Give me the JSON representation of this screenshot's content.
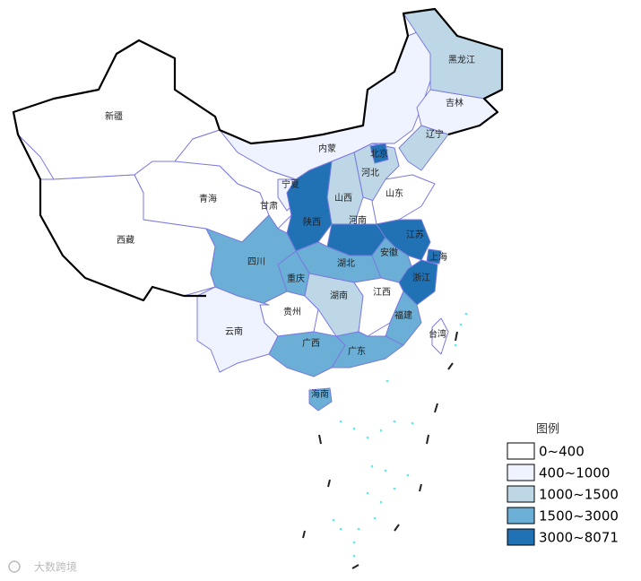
{
  "map": {
    "regions": [
      {
        "name": "新疆",
        "color": "#ffffff"
      },
      {
        "name": "西藏",
        "color": "#ffffff"
      },
      {
        "name": "青海",
        "color": "#ffffff"
      },
      {
        "name": "甘肃",
        "color": "#ffffff"
      },
      {
        "name": "内蒙",
        "color": "#eff3ff"
      },
      {
        "name": "黑龙江",
        "color": "#bdd7e7"
      },
      {
        "name": "吉林",
        "color": "#eff3ff"
      },
      {
        "name": "辽宁",
        "color": "#bdd7e7"
      },
      {
        "name": "河北",
        "color": "#bdd7e7"
      },
      {
        "name": "北京",
        "color": "#2171b5"
      },
      {
        "name": "山西",
        "color": "#bdd7e7"
      },
      {
        "name": "山东",
        "color": "#ffffff"
      },
      {
        "name": "宁夏",
        "color": "#eff3ff"
      },
      {
        "name": "陕西",
        "color": "#2171b5"
      },
      {
        "name": "河南",
        "color": "#2171b5"
      },
      {
        "name": "江苏",
        "color": "#2171b5"
      },
      {
        "name": "上海",
        "color": "#2171b5"
      },
      {
        "name": "安徽",
        "color": "#6baed6"
      },
      {
        "name": "浙江",
        "color": "#2171b5"
      },
      {
        "name": "湖北",
        "color": "#6baed6"
      },
      {
        "name": "重庆",
        "color": "#6baed6"
      },
      {
        "name": "四川",
        "color": "#6baed6"
      },
      {
        "name": "贵州",
        "color": "#ffffff"
      },
      {
        "name": "湖南",
        "color": "#bdd7e7"
      },
      {
        "name": "江西",
        "color": "#ffffff"
      },
      {
        "name": "福建",
        "color": "#6baed6"
      },
      {
        "name": "云南",
        "color": "#eff3ff"
      },
      {
        "name": "广西",
        "color": "#6baed6"
      },
      {
        "name": "广东",
        "color": "#6baed6"
      },
      {
        "name": "海南",
        "color": "#6baed6"
      },
      {
        "name": "台湾",
        "color": "#ffffff"
      }
    ],
    "legend": {
      "title": "图例",
      "items": [
        {
          "label": "0~400",
          "color": "#ffffff"
        },
        {
          "label": "400~1000",
          "color": "#eff3ff"
        },
        {
          "label": "1000~1500",
          "color": "#bdd7e7"
        },
        {
          "label": "1500~3000",
          "color": "#6baed6"
        },
        {
          "label": "3000~8071",
          "color": "#2171b5"
        }
      ]
    },
    "watermark": "大数跨境"
  }
}
